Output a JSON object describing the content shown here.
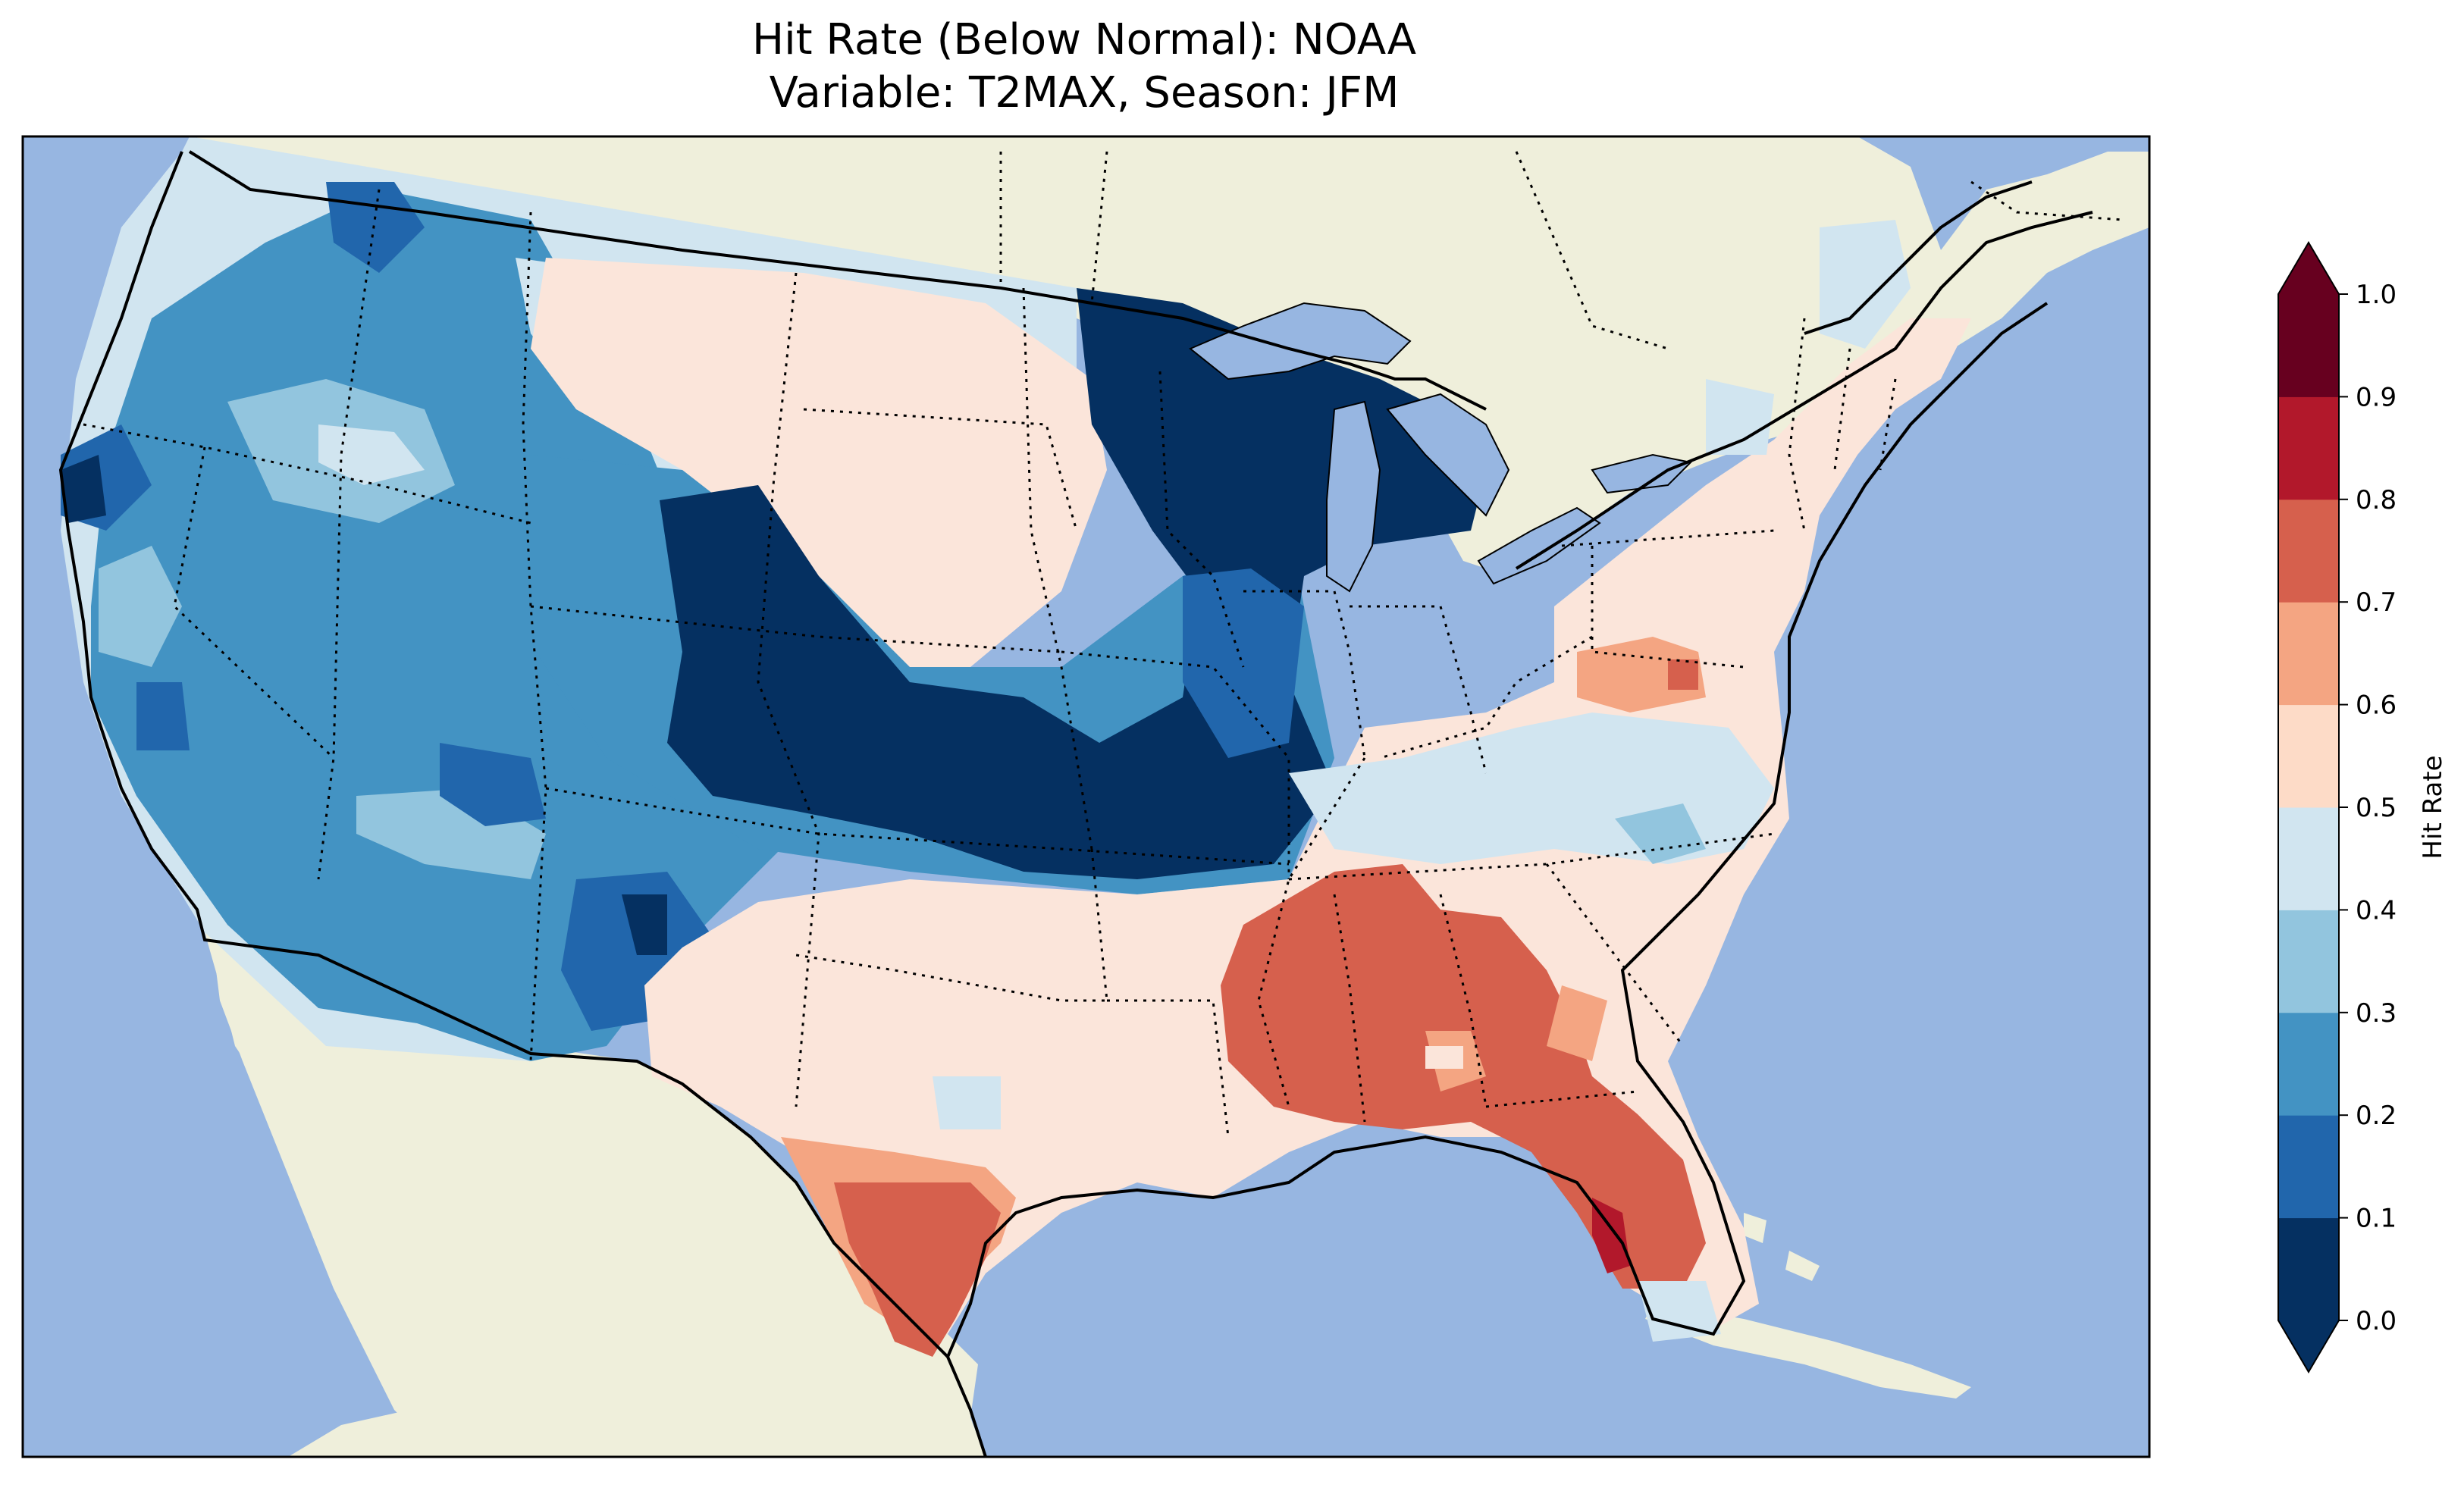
{
  "title": {
    "line1": "Hit Rate (Below Normal): NOAA",
    "line2": "Variable: T2MAX, Season: JFM"
  },
  "colorbar": {
    "label": "Hit Rate",
    "ticks": [
      "0.0",
      "0.1",
      "0.2",
      "0.3",
      "0.4",
      "0.5",
      "0.6",
      "0.7",
      "0.8",
      "0.9",
      "1.0"
    ],
    "colors": [
      "#053061",
      "#2166ac",
      "#4393c3",
      "#92c5de",
      "#d1e5f0",
      "#fddbc7",
      "#f4a582",
      "#d6604d",
      "#b2182b",
      "#67001f"
    ],
    "under_color": "#053061",
    "over_color": "#67001f"
  },
  "map": {
    "ocean_color": "#97b6e1",
    "land_color": "#efefdb",
    "region_colors": {
      "dark_blue": "#053061",
      "mid_blue": "#2166ac",
      "light_blue": "#4393c3",
      "pale_blue": "#92c5de",
      "very_pale_blue": "#d1e5f0",
      "pale_red": "#fbe5da",
      "light_red": "#f4a582",
      "red": "#d6604d",
      "dark_red": "#b2182b"
    }
  }
}
